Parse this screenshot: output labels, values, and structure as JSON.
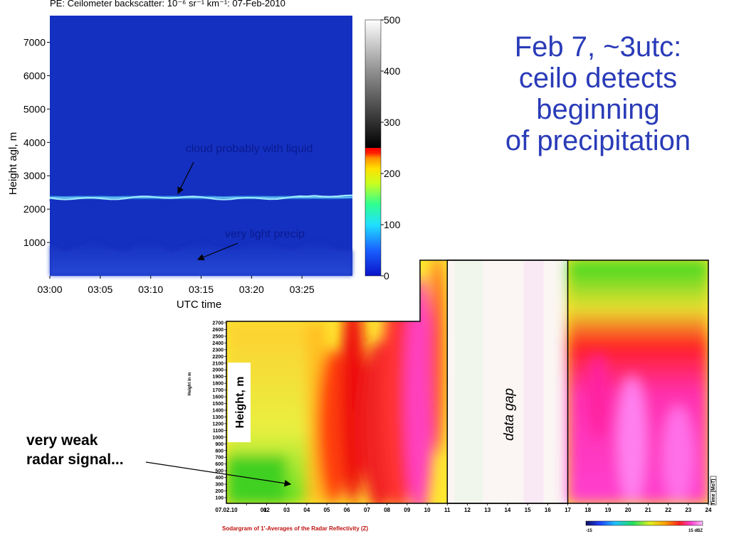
{
  "slide": {
    "title_lines": [
      "Feb 7, ~3utc:",
      "ceilo detects",
      "beginning",
      "of precipitation"
    ],
    "note_lines": [
      "very weak",
      "radar signal..."
    ]
  },
  "colors": {
    "title": "#2a3bb8",
    "ceilometer_background": "#1430c0",
    "cloud_layer": "#9fe8ff"
  },
  "chart_data": [
    {
      "type": "heatmap",
      "title": "PE: Ceilometer backscatter: 10⁻⁶ sr⁻¹ km⁻¹: 07-Feb-2010",
      "xlabel": "UTC time",
      "ylabel": "Height agl, m",
      "x_ticks": [
        "03:00",
        "03:05",
        "03:10",
        "03:15",
        "03:20",
        "03:25"
      ],
      "x_range": [
        "03:00",
        "03:30"
      ],
      "y_ticks": [
        1000,
        2000,
        3000,
        4000,
        5000,
        6000,
        7000
      ],
      "ylim": [
        0,
        7800
      ],
      "colorbar": {
        "ticks": [
          0,
          100,
          200,
          300,
          400,
          500
        ],
        "range": [
          0,
          500
        ]
      },
      "features": [
        {
          "name": "cloud layer",
          "height_m": 2400,
          "value": 110
        },
        {
          "name": "precipitation",
          "height_range_m": [
            0,
            1100
          ],
          "value": 25
        }
      ],
      "annotations": [
        "cloud probably with liquid",
        "very light precip"
      ]
    },
    {
      "type": "heatmap",
      "title": "Sodargram of 1'-Averages of the Radar Reflectivity (Z)",
      "xlabel": "",
      "x_start_label": "07.02.10",
      "x_ticks": [
        "01",
        "02",
        "03",
        "04",
        "05",
        "06",
        "07",
        "08",
        "09",
        "10",
        "11",
        "12",
        "13",
        "14",
        "15",
        "16",
        "17",
        "18",
        "19",
        "20",
        "21",
        "22",
        "23",
        "24"
      ],
      "y_axis_title": "Height, m",
      "y_small_title": "Height in m",
      "y_ticks": [
        100,
        200,
        300,
        400,
        500,
        600,
        700,
        800,
        900,
        1000,
        1100,
        1200,
        1300,
        1400,
        1500,
        1600,
        1700,
        1800,
        1900,
        2000,
        2100,
        2200,
        2300,
        2400,
        2500,
        2600,
        2700
      ],
      "right_label": "Time (MoT)",
      "gap": {
        "label": "data gap",
        "range": [
          "11",
          "17"
        ]
      },
      "colorbar": {
        "min_label": "-15",
        "max_label": "15 dBZ"
      }
    }
  ]
}
